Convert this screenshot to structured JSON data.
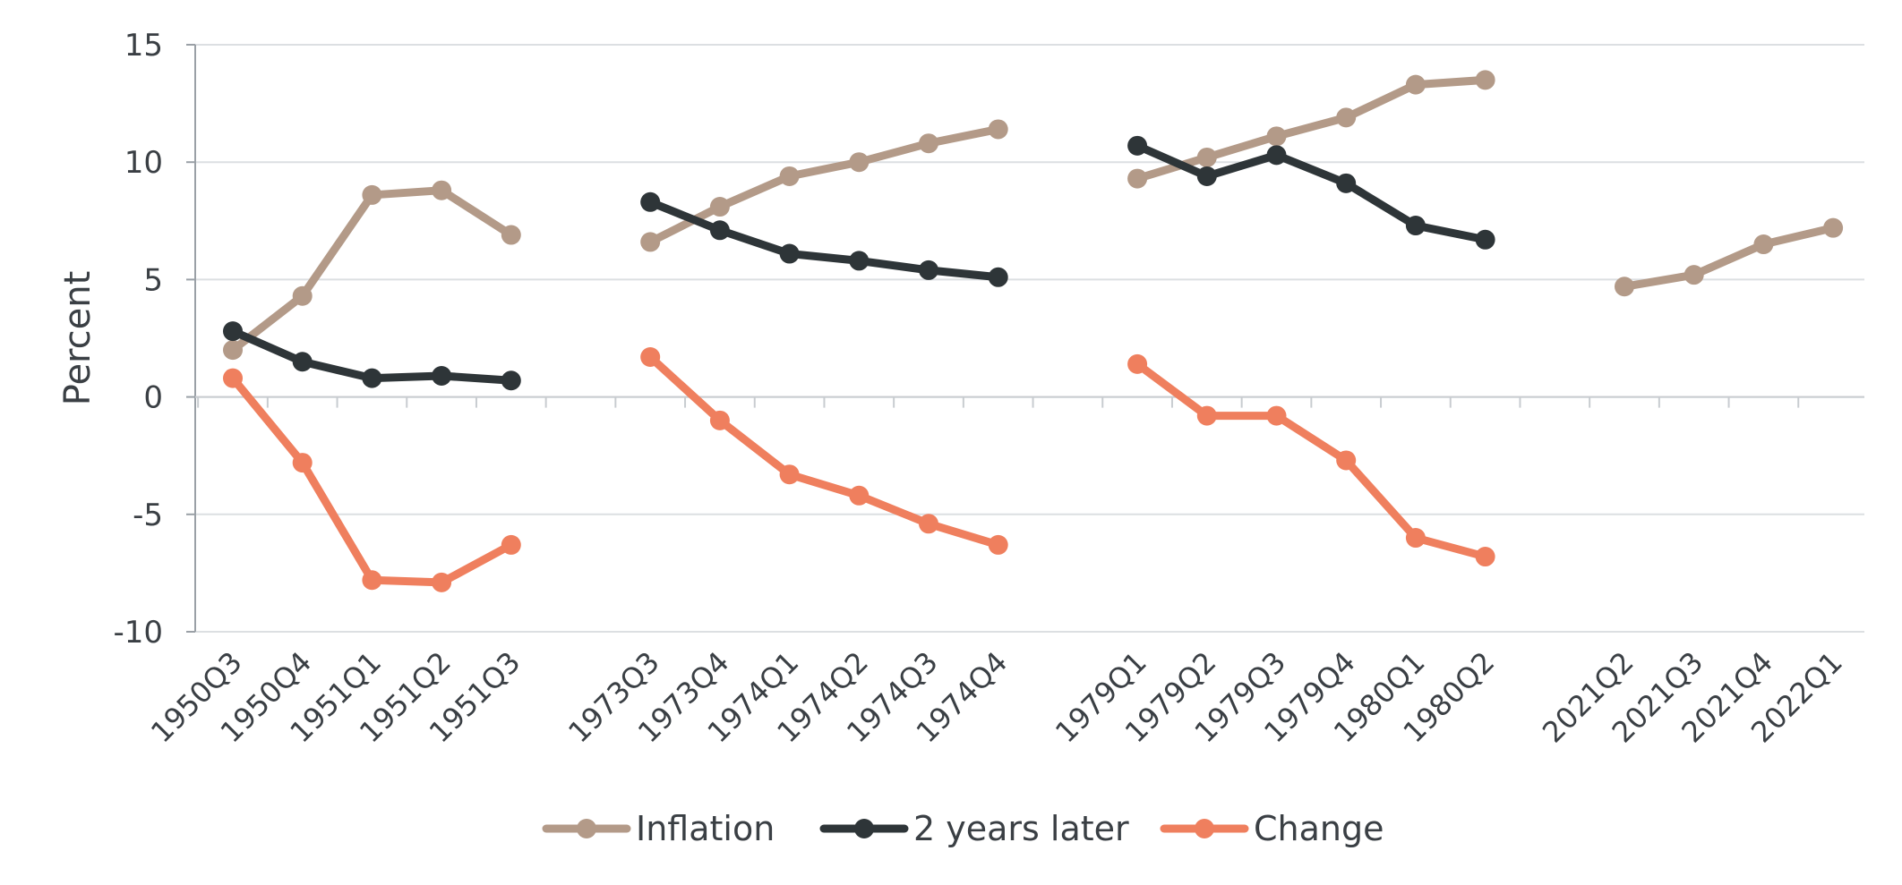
{
  "chart_data": {
    "type": "line",
    "ylabel": "Percent",
    "ylim": [
      -10,
      15
    ],
    "yticks": [
      -10,
      -5,
      0,
      5,
      10,
      15
    ],
    "grid": true,
    "legend_position": "bottom",
    "categories": [
      "1950Q3",
      "1950Q4",
      "1951Q1",
      "1951Q2",
      "1951Q3",
      "",
      "1973Q3",
      "1973Q4",
      "1974Q1",
      "1974Q2",
      "1974Q3",
      "1974Q4",
      "",
      "1979Q1",
      "1979Q2",
      "1979Q3",
      "1979Q4",
      "1980Q1",
      "1980Q2",
      "",
      "2021Q2",
      "2021Q3",
      "2021Q4",
      "2022Q1"
    ],
    "series": [
      {
        "name": "Inflation",
        "color": "#b39a88",
        "values": [
          2.0,
          4.3,
          8.6,
          8.8,
          6.9,
          null,
          6.6,
          8.1,
          9.4,
          10.0,
          10.8,
          11.4,
          null,
          9.3,
          10.2,
          11.1,
          11.9,
          13.3,
          13.5,
          null,
          4.7,
          5.2,
          6.5,
          7.2
        ]
      },
      {
        "name": "2 years later",
        "color": "#2e3538",
        "values": [
          2.8,
          1.5,
          0.8,
          0.9,
          0.7,
          null,
          8.3,
          7.1,
          6.1,
          5.8,
          5.4,
          5.1,
          null,
          10.7,
          9.4,
          10.3,
          9.1,
          7.3,
          6.7,
          null,
          null,
          null,
          null,
          null
        ]
      },
      {
        "name": "Change",
        "color": "#ef7f5e",
        "values": [
          0.8,
          -2.8,
          -7.8,
          -7.9,
          -6.3,
          null,
          1.7,
          -1.0,
          -3.3,
          -4.2,
          -5.4,
          -6.3,
          null,
          1.4,
          -0.8,
          -0.8,
          -2.7,
          -6.0,
          -6.8,
          null,
          null,
          null,
          null,
          null
        ]
      }
    ]
  }
}
